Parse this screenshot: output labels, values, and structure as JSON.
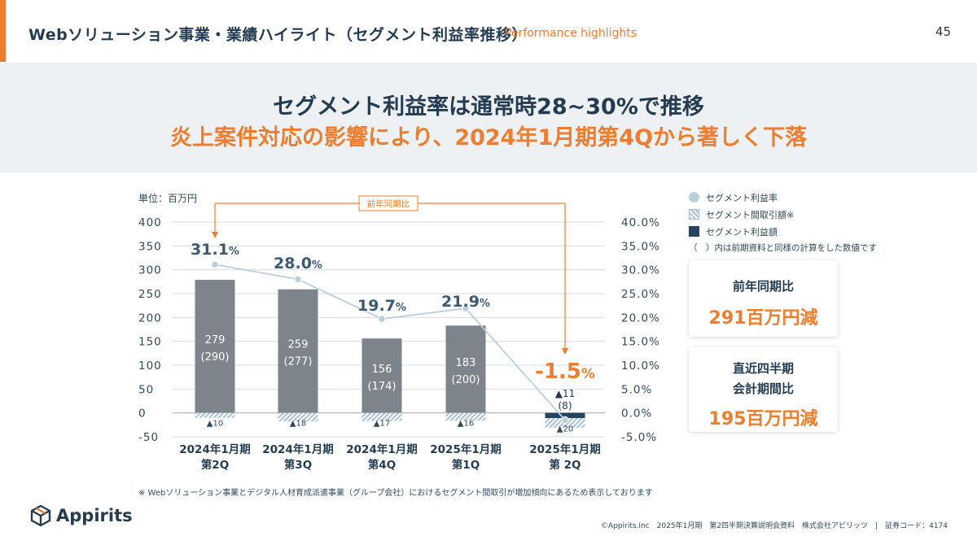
{
  "header": {
    "title": "Webソリューション事業・業績ハイライト（セグメント利益率推移）",
    "subtitle": "Performance highlights",
    "page_number": "45"
  },
  "hero": {
    "line1": "セグメント利益率は通常時28~30%で推移",
    "line2": "炎上案件対応の影響により、2024年1月期第4Qから著しく下落"
  },
  "colors": {
    "accent": "#ef7d2d",
    "navy": "#233c52",
    "bar_gray": "#7d848b",
    "profit_navy": "#24445f",
    "rate_line": "#b9cfde",
    "hero_bg": "#edf1f4"
  },
  "legend": {
    "items": [
      {
        "label": "セグメント利益率",
        "icon": "circle-swatch"
      },
      {
        "label": "セグメント間取引額※",
        "icon": "hatched-swatch"
      },
      {
        "label": "セグメント利益額",
        "icon": "square-swatch"
      }
    ],
    "note": "（　）内は前期資料と同様の計算をした数値です"
  },
  "cards": [
    {
      "title": "前年同期比",
      "value": "291百万円減"
    },
    {
      "title": "直近四半期\n会計期間比",
      "value": "195百万円減"
    }
  ],
  "chart_data": {
    "type": "bar",
    "unit_label": "単位：百万円",
    "comparison_label": "前年同期比",
    "categories": [
      "2024年1月期\n第2Q",
      "2024年1月期\n第3Q",
      "2024年1月期\n第4Q",
      "2025年1月期\n第1Q",
      "2025年1月期\n第 2Q"
    ],
    "ylim": [
      -50,
      400
    ],
    "y_ticks": [
      "400",
      "350",
      "300",
      "250",
      "200",
      "150",
      "100",
      "50",
      "0",
      "-50"
    ],
    "y2lim": [
      -5.0,
      40.0
    ],
    "y2_ticks": [
      "40.0%",
      "35.0%",
      "30.0%",
      "25.0%",
      "20.0%",
      "15.0%",
      "10.0%",
      "5.0%",
      "0.0%",
      "-5.0%"
    ],
    "series": [
      {
        "name": "セグメント利益額",
        "values": [
          279,
          259,
          156,
          183,
          -11
        ],
        "labels": [
          "279",
          "259",
          "156",
          "183",
          "▲11"
        ],
        "alt_labels": [
          "(290)",
          "(277)",
          "(174)",
          "(200)",
          "(8)"
        ]
      },
      {
        "name": "セグメント間取引額※",
        "values": [
          -10,
          -18,
          -17,
          -16,
          -20
        ],
        "labels": [
          "▲10",
          "▲18",
          "▲17",
          "▲16",
          "▲20"
        ]
      },
      {
        "name": "セグメント利益率",
        "values": [
          31.1,
          28.0,
          19.7,
          21.9,
          -1.5
        ],
        "labels": [
          "31.1",
          "28.0",
          "19.7",
          "21.9",
          "-1.5"
        ],
        "unit": "%"
      }
    ]
  },
  "footnote": "※ Webソリューション事業とデジタル人材育成派遣事業（グループ会社）におけるセグメント間取引が増加傾向にあるため表示しております",
  "footer": {
    "logo_text": "Appirits",
    "copyright": "©Appirits.Inc　2025年1月期　第2四半期決算説明会資料　株式会社アピリッツ　|　証券コード：4174"
  }
}
